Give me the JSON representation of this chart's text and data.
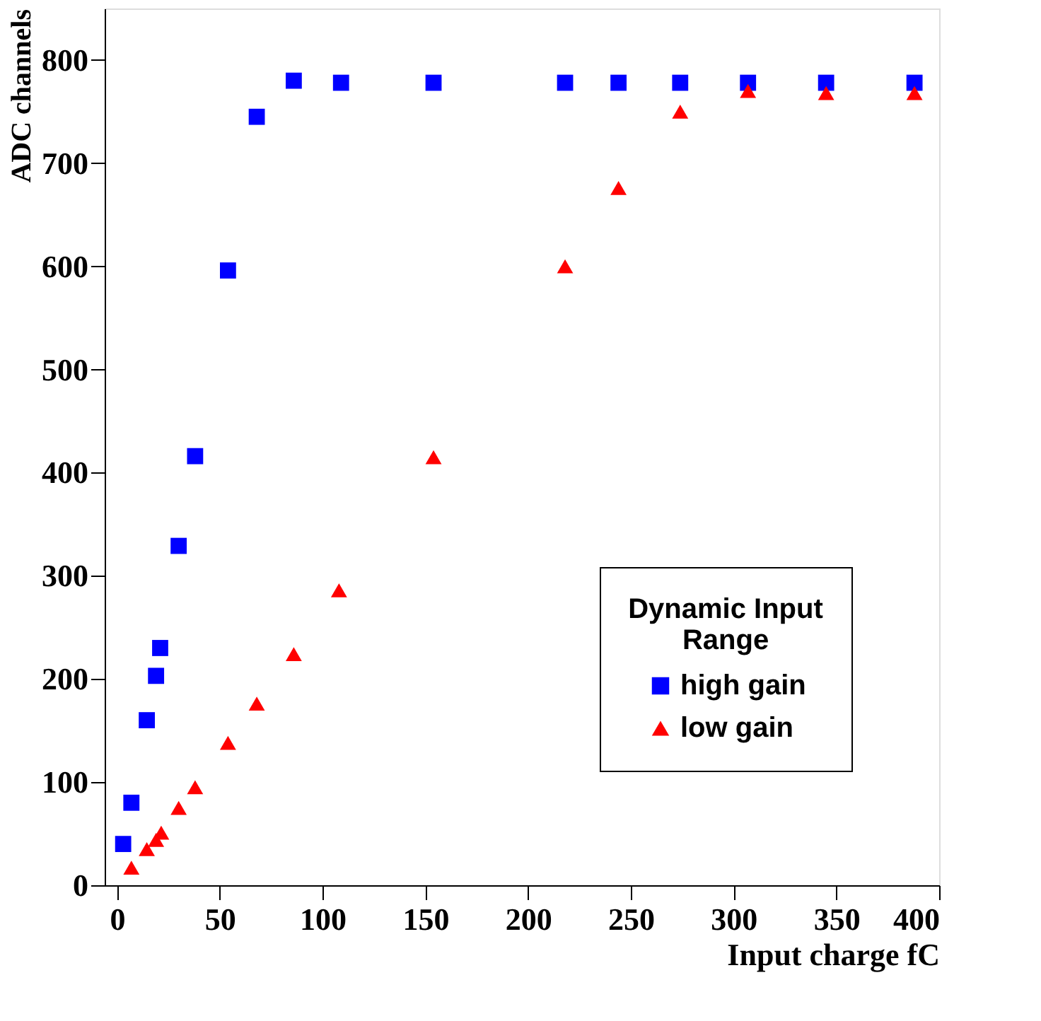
{
  "chart_data": {
    "type": "scatter",
    "xlabel": "Input charge  fC",
    "ylabel": "ADC channels",
    "legend_title": "Dynamic Input Range",
    "legend": "bottom right",
    "grid": false,
    "xlim": [
      -6,
      400
    ],
    "xticks": [
      0,
      50,
      100,
      150,
      200,
      250,
      300,
      350,
      400
    ],
    "ylim": [
      0,
      850
    ],
    "yticks": [
      0,
      100,
      200,
      300,
      400,
      500,
      600,
      700,
      800
    ],
    "series": [
      {
        "name": "high gain",
        "color": "#0000ff",
        "marker": "square",
        "x": [
          3,
          7,
          14.5,
          19,
          21,
          30,
          38,
          54,
          68,
          86,
          109,
          154,
          218,
          244,
          274,
          307,
          345,
          388
        ],
        "values": [
          40,
          80,
          160,
          203,
          230,
          329,
          416,
          596,
          745,
          780,
          778,
          778,
          778,
          778,
          778,
          778,
          778,
          778
        ]
      },
      {
        "name": "low gain",
        "color": "#ff0000",
        "marker": "triangle",
        "x": [
          7,
          14.5,
          19,
          21.5,
          30,
          38,
          54,
          68,
          86,
          108,
          154,
          218,
          244,
          274,
          307,
          345,
          388
        ],
        "values": [
          17,
          35,
          44,
          51,
          75,
          95,
          138,
          176,
          224,
          286,
          415,
          600,
          676,
          750,
          770,
          768,
          768
        ]
      }
    ]
  }
}
